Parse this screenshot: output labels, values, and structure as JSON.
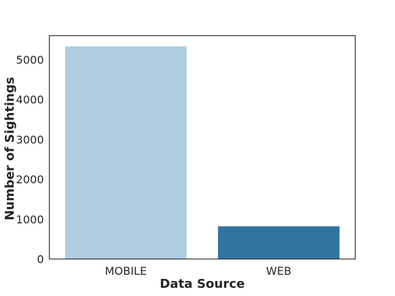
{
  "chart_data": {
    "type": "bar",
    "title": "",
    "xlabel": "Data Source",
    "ylabel": "Number of Sightings",
    "categories": [
      "MOBILE",
      "WEB"
    ],
    "values": [
      5330,
      820
    ],
    "colors": [
      "#b0cde0",
      "#3274a1"
    ],
    "ylim": [
      0,
      5600
    ],
    "yticks": [
      0,
      1000,
      2000,
      3000,
      4000,
      5000
    ],
    "ytick_labels": [
      "0",
      "1000",
      "2000",
      "3000",
      "4000",
      "5000"
    ],
    "grid": false,
    "legend": "none"
  }
}
